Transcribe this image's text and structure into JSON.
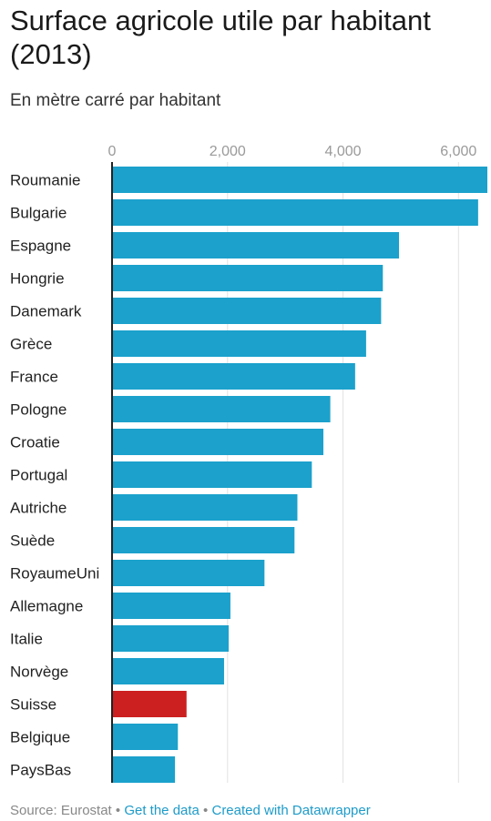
{
  "header": {
    "title": "Surface agricole utile par habitant (2013)",
    "subtitle": "En mètre carré par habitant"
  },
  "footer": {
    "source": "Source: Eurostat",
    "sep1": " • ",
    "get_data": "Get the data",
    "sep2": " • ",
    "created": "Created with Datawrapper"
  },
  "colors": {
    "bar": "#1ba1cc",
    "highlight": "#cc1f1f",
    "grid": "#e2e2e2",
    "axis": "#222222",
    "tick": "#9a9a9a"
  },
  "chart_data": {
    "type": "bar",
    "orientation": "horizontal",
    "title": "Surface agricole utile par habitant (2013)",
    "subtitle": "En mètre carré par habitant",
    "xlim": [
      0,
      6500
    ],
    "ticks": [
      0,
      2000,
      4000,
      6000
    ],
    "tick_labels": [
      "0",
      "2,000",
      "4,000",
      "6,000"
    ],
    "grid": true,
    "categories": [
      "Roumanie",
      "Bulgarie",
      "Espagne",
      "Hongrie",
      "Danemark",
      "Grèce",
      "France",
      "Pologne",
      "Croatie",
      "Portugal",
      "Autriche",
      "Suède",
      "RoyaumeUni",
      "Allemagne",
      "Italie",
      "Norvège",
      "Suisse",
      "Belgique",
      "PaysBas"
    ],
    "values": [
      6500,
      6340,
      4970,
      4690,
      4660,
      4400,
      4210,
      3780,
      3660,
      3460,
      3210,
      3160,
      2640,
      2050,
      2020,
      1940,
      1290,
      1140,
      1090
    ],
    "highlight": [
      "Suisse"
    ]
  }
}
